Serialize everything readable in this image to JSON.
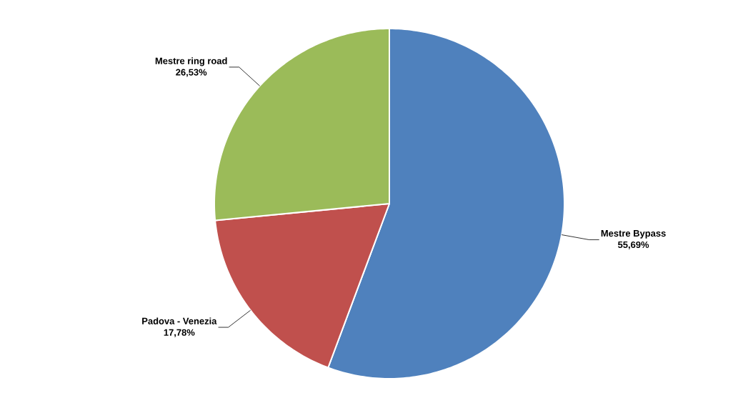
{
  "chart_data": {
    "type": "pie",
    "categories": [
      "Mestre Bypass",
      "Padova - Venezia",
      "Mestre ring road"
    ],
    "values": [
      55.69,
      17.78,
      26.53
    ],
    "colors": [
      "#4f81bd",
      "#c0504d",
      "#9bbb59"
    ],
    "value_labels": [
      "55,69%",
      "17,78%",
      "26,53%"
    ]
  }
}
